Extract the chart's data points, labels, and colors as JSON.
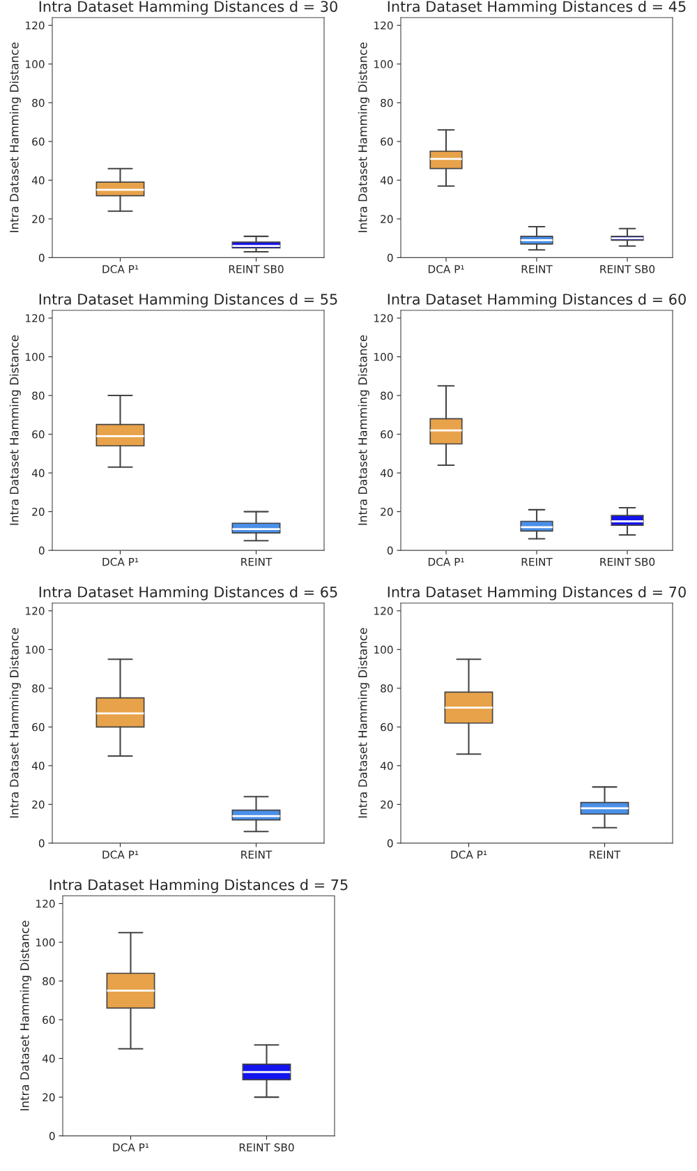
{
  "chart_data": [
    {
      "type": "box",
      "title": "Intra Dataset Hamming Distances d = 30",
      "ylabel": "Intra Dataset Hamming Distance",
      "categories": [
        "DCA P¹",
        "REINT SB0"
      ],
      "colors": [
        "#e8a24a",
        "#1414ee"
      ],
      "ylim": [
        0,
        124
      ],
      "yticks": [
        0,
        20,
        40,
        60,
        80,
        100,
        120
      ],
      "grid": false,
      "boxes": [
        {
          "low": 24,
          "q1": 32,
          "median": 35,
          "q3": 39,
          "high": 46
        },
        {
          "low": 3,
          "q1": 5,
          "median": 6,
          "q3": 8,
          "high": 11
        }
      ]
    },
    {
      "type": "box",
      "title": "Intra Dataset Hamming Distances d = 45",
      "ylabel": "Intra Dataset Hamming Distance",
      "categories": [
        "DCA P¹",
        "REINT",
        "REINT SB0"
      ],
      "colors": [
        "#e8a24a",
        "#4a8fe8",
        "#1414ee"
      ],
      "ylim": [
        0,
        124
      ],
      "yticks": [
        0,
        20,
        40,
        60,
        80,
        100,
        120
      ],
      "grid": false,
      "boxes": [
        {
          "low": 37,
          "q1": 46,
          "median": 51,
          "q3": 55,
          "high": 66
        },
        {
          "low": 4,
          "q1": 7,
          "median": 9,
          "q3": 11,
          "high": 16
        },
        {
          "low": 6,
          "q1": 9,
          "median": 10,
          "q3": 11,
          "high": 15
        }
      ]
    },
    {
      "type": "box",
      "title": "Intra Dataset Hamming Distances d = 55",
      "ylabel": "Intra Dataset Hamming Distance",
      "categories": [
        "DCA P¹",
        "REINT"
      ],
      "colors": [
        "#e8a24a",
        "#4a8fe8"
      ],
      "ylim": [
        0,
        124
      ],
      "yticks": [
        0,
        20,
        40,
        60,
        80,
        100,
        120
      ],
      "grid": false,
      "boxes": [
        {
          "low": 43,
          "q1": 54,
          "median": 59,
          "q3": 65,
          "high": 80
        },
        {
          "low": 5,
          "q1": 9,
          "median": 11,
          "q3": 14,
          "high": 20
        }
      ]
    },
    {
      "type": "box",
      "title": "Intra Dataset Hamming Distances d = 60",
      "ylabel": "Intra Dataset Hamming Distance",
      "categories": [
        "DCA P¹",
        "REINT",
        "REINT SB0"
      ],
      "colors": [
        "#e8a24a",
        "#4a8fe8",
        "#1414ee"
      ],
      "ylim": [
        0,
        124
      ],
      "yticks": [
        0,
        20,
        40,
        60,
        80,
        100,
        120
      ],
      "grid": false,
      "boxes": [
        {
          "low": 44,
          "q1": 55,
          "median": 62,
          "q3": 68,
          "high": 85
        },
        {
          "low": 6,
          "q1": 10,
          "median": 12,
          "q3": 15,
          "high": 21
        },
        {
          "low": 8,
          "q1": 13,
          "median": 15,
          "q3": 18,
          "high": 22
        }
      ]
    },
    {
      "type": "box",
      "title": "Intra Dataset Hamming Distances d = 65",
      "ylabel": "Intra Dataset Hamming Distance",
      "categories": [
        "DCA P¹",
        "REINT"
      ],
      "colors": [
        "#e8a24a",
        "#4a8fe8"
      ],
      "ylim": [
        0,
        124
      ],
      "yticks": [
        0,
        20,
        40,
        60,
        80,
        100,
        120
      ],
      "grid": false,
      "boxes": [
        {
          "low": 45,
          "q1": 60,
          "median": 67,
          "q3": 75,
          "high": 95
        },
        {
          "low": 6,
          "q1": 12,
          "median": 14,
          "q3": 17,
          "high": 24
        }
      ]
    },
    {
      "type": "box",
      "title": "Intra Dataset Hamming Distances d = 70",
      "ylabel": "Intra Dataset Hamming Distance",
      "categories": [
        "DCA P¹",
        "REINT"
      ],
      "colors": [
        "#e8a24a",
        "#4a8fe8"
      ],
      "ylim": [
        0,
        124
      ],
      "yticks": [
        0,
        20,
        40,
        60,
        80,
        100,
        120
      ],
      "grid": false,
      "boxes": [
        {
          "low": 46,
          "q1": 62,
          "median": 70,
          "q3": 78,
          "high": 95
        },
        {
          "low": 8,
          "q1": 15,
          "median": 18,
          "q3": 21,
          "high": 29
        }
      ]
    },
    {
      "type": "box",
      "title": "Intra Dataset Hamming Distances d = 75",
      "ylabel": "Intra Dataset Hamming Distance",
      "categories": [
        "DCA P¹",
        "REINT SB0"
      ],
      "colors": [
        "#e8a24a",
        "#1414ee"
      ],
      "ylim": [
        0,
        124
      ],
      "yticks": [
        0,
        20,
        40,
        60,
        80,
        100,
        120
      ],
      "grid": false,
      "boxes": [
        {
          "low": 45,
          "q1": 66,
          "median": 75,
          "q3": 84,
          "high": 105
        },
        {
          "low": 20,
          "q1": 29,
          "median": 33,
          "q3": 37,
          "high": 47
        }
      ]
    }
  ]
}
